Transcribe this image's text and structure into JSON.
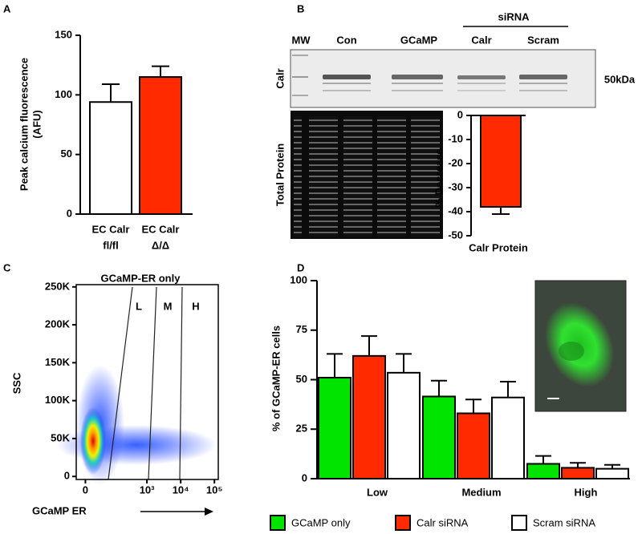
{
  "panel_labels": [
    "A",
    "B",
    "C",
    "D"
  ],
  "blot": {
    "lane_labels": [
      "MW",
      "Con",
      "GCaMP",
      "Calr",
      "Scram"
    ],
    "group_label": "siRNA",
    "row_labels": [
      "Calr",
      "Total Protein"
    ],
    "size_marker": "50kDa"
  },
  "chart_data": [
    {
      "type": "bar",
      "ylabel": [
        "Peak calcium fluorescence",
        "(AFU)"
      ],
      "categories": [
        [
          "EC Calr",
          "fl/fl"
        ],
        [
          "EC Calr",
          "Δ/Δ"
        ]
      ],
      "values": [
        94,
        115
      ],
      "errors": [
        15,
        9
      ],
      "colors": [
        "#ffffff",
        "#ff2a00"
      ],
      "ylim": [
        0,
        150
      ],
      "yticks": [
        0,
        50,
        100,
        150
      ]
    },
    {
      "type": "bar",
      "ylabel": [
        "% Decrease"
      ],
      "categories": [
        "Calr Protein"
      ],
      "values": [
        -38
      ],
      "errors": [
        3
      ],
      "colors": [
        "#ff2a00"
      ],
      "ylim": [
        -50,
        0
      ],
      "yticks": [
        0,
        -10,
        -20,
        -30,
        -40,
        -50
      ]
    },
    {
      "type": "density",
      "title": "GCaMP-ER only",
      "xlabel": "GCaMP ER",
      "ylabel": "SSC",
      "gates": [
        "L",
        "M",
        "H"
      ],
      "xscale": "biexponential",
      "xlim": [
        -20,
        130000
      ],
      "ylim": [
        -4000,
        253000
      ],
      "xticks": [
        0,
        {
          "value": 1000,
          "label": "10³"
        },
        {
          "value": 10000,
          "label": "10⁴"
        },
        {
          "value": 100000,
          "label": "10⁵"
        }
      ],
      "yticks": [
        0,
        {
          "value": 50000,
          "label": "50K"
        },
        {
          "value": 100000,
          "label": "100K"
        },
        {
          "value": 150000,
          "label": "150K"
        },
        {
          "value": 200000,
          "label": "200K"
        },
        {
          "value": 250000,
          "label": "250K"
        }
      ]
    },
    {
      "type": "grouped-bar",
      "ylabel": "% of GCaMP-ER cells",
      "categories": [
        "Low",
        "Medium",
        "High"
      ],
      "series": [
        {
          "name": "GCaMP only",
          "color": "#00e400",
          "values": [
            51,
            41.5,
            7.5
          ],
          "errors": [
            12,
            8,
            4
          ]
        },
        {
          "name": "Calr siRNA",
          "color": "#ff2a00",
          "values": [
            62,
            33,
            5.5
          ],
          "errors": [
            10,
            7,
            2.5
          ]
        },
        {
          "name": "Scram siRNA",
          "color": "#ffffff",
          "values": [
            53.5,
            41,
            5
          ],
          "errors": [
            9.5,
            8,
            2
          ]
        }
      ],
      "ylim": [
        0,
        100
      ],
      "yticks": [
        0,
        25,
        50,
        75,
        100
      ],
      "legend": "bottom"
    }
  ]
}
